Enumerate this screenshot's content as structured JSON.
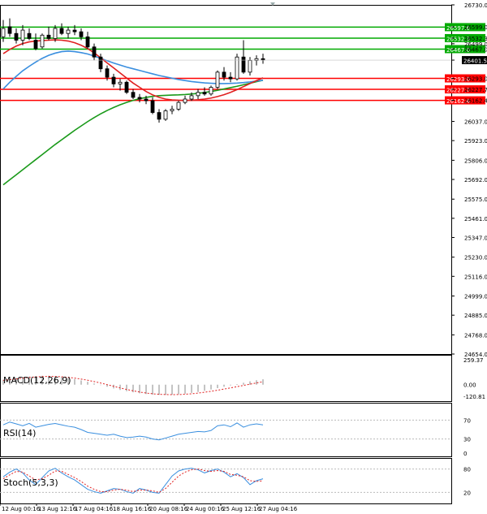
{
  "chart_data": {
    "type": "candlestick",
    "indicators": [
      "MA-fast",
      "MA-slow",
      "MA-long",
      "MACD",
      "RSI",
      "Stochastic"
    ],
    "price_axis": {
      "ticks": [
        "26730.0",
        "26599.0",
        "26532.3",
        "26499.0",
        "26467.0",
        "26401.5",
        "26293.0",
        "26227.7",
        "26162.4",
        "26037.0",
        "25923.0",
        "25806.0",
        "25692.0",
        "25575.0",
        "25461.0",
        "25347.0",
        "25230.0",
        "25116.0",
        "24999.0",
        "24885.0",
        "24768.0",
        "24654.0"
      ],
      "ylim": [
        24654.0,
        26730.0
      ]
    },
    "x_ticks": [
      "12 Aug 00:16",
      "13 Aug 12:16",
      "17 Aug 04:16",
      "18 Aug 16:16",
      "20 Aug 08:16",
      "24 Aug 00:16",
      "25 Aug 12:16",
      "27 Aug 04:16"
    ],
    "levels": [
      {
        "label": "26597.6",
        "value": 26597.6,
        "color": "#00aa00"
      },
      {
        "label": "26532.3",
        "value": 26532.3,
        "color": "#00aa00"
      },
      {
        "label": "26467.0",
        "value": 26467.0,
        "color": "#00aa00"
      },
      {
        "label": "26293.0",
        "value": 26293.0,
        "color": "#ff0000"
      },
      {
        "label": "26227.7",
        "value": 26227.7,
        "color": "#ff0000"
      },
      {
        "label": "26162.4",
        "value": 26162.4,
        "color": "#ff0000"
      }
    ],
    "current_price": {
      "label": "26401.5",
      "value": 26401.5
    },
    "panels": {
      "macd": {
        "label": "MACD(12,26,9)",
        "ticks": [
          "259.37",
          "0.00",
          "-120.81"
        ]
      },
      "rsi": {
        "label": "RSI(14)",
        "ticks": [
          "70",
          "30",
          "0"
        ]
      },
      "stoch": {
        "label": "Stoch(5,3,3)",
        "ticks": [
          "80",
          "20"
        ]
      }
    },
    "candles": [
      {
        "o": 26540,
        "h": 26640,
        "l": 26510,
        "c": 26590
      },
      {
        "o": 26600,
        "h": 26650,
        "l": 26540,
        "c": 26560
      },
      {
        "o": 26560,
        "h": 26590,
        "l": 26500,
        "c": 26520
      },
      {
        "o": 26520,
        "h": 26610,
        "l": 26490,
        "c": 26580
      },
      {
        "o": 26560,
        "h": 26590,
        "l": 26520,
        "c": 26530
      },
      {
        "o": 26520,
        "h": 26560,
        "l": 26460,
        "c": 26470
      },
      {
        "o": 26480,
        "h": 26560,
        "l": 26470,
        "c": 26550
      },
      {
        "o": 26550,
        "h": 26600,
        "l": 26520,
        "c": 26530
      },
      {
        "o": 26530,
        "h": 26610,
        "l": 26510,
        "c": 26590
      },
      {
        "o": 26590,
        "h": 26620,
        "l": 26550,
        "c": 26560
      },
      {
        "o": 26560,
        "h": 26600,
        "l": 26530,
        "c": 26580
      },
      {
        "o": 26580,
        "h": 26610,
        "l": 26550,
        "c": 26570
      },
      {
        "o": 26570,
        "h": 26590,
        "l": 26520,
        "c": 26540
      },
      {
        "o": 26540,
        "h": 26570,
        "l": 26470,
        "c": 26480
      },
      {
        "o": 26480,
        "h": 26500,
        "l": 26400,
        "c": 26420
      },
      {
        "o": 26420,
        "h": 26440,
        "l": 26330,
        "c": 26350
      },
      {
        "o": 26350,
        "h": 26370,
        "l": 26280,
        "c": 26300
      },
      {
        "o": 26300,
        "h": 26320,
        "l": 26240,
        "c": 26260
      },
      {
        "o": 26260,
        "h": 26290,
        "l": 26220,
        "c": 26270
      },
      {
        "o": 26270,
        "h": 26280,
        "l": 26200,
        "c": 26210
      },
      {
        "o": 26210,
        "h": 26230,
        "l": 26170,
        "c": 26180
      },
      {
        "o": 26180,
        "h": 26200,
        "l": 26150,
        "c": 26170
      },
      {
        "o": 26170,
        "h": 26190,
        "l": 26140,
        "c": 26160
      },
      {
        "o": 26160,
        "h": 26180,
        "l": 26080,
        "c": 26090
      },
      {
        "o": 26090,
        "h": 26110,
        "l": 26030,
        "c": 26050
      },
      {
        "o": 26050,
        "h": 26110,
        "l": 26040,
        "c": 26100
      },
      {
        "o": 26100,
        "h": 26130,
        "l": 26080,
        "c": 26110
      },
      {
        "o": 26110,
        "h": 26160,
        "l": 26100,
        "c": 26150
      },
      {
        "o": 26150,
        "h": 26190,
        "l": 26140,
        "c": 26170
      },
      {
        "o": 26170,
        "h": 26210,
        "l": 26160,
        "c": 26190
      },
      {
        "o": 26190,
        "h": 26230,
        "l": 26170,
        "c": 26210
      },
      {
        "o": 26210,
        "h": 26240,
        "l": 26190,
        "c": 26200
      },
      {
        "o": 26200,
        "h": 26250,
        "l": 26190,
        "c": 26240
      },
      {
        "o": 26240,
        "h": 26340,
        "l": 26230,
        "c": 26330
      },
      {
        "o": 26330,
        "h": 26360,
        "l": 26280,
        "c": 26300
      },
      {
        "o": 26300,
        "h": 26330,
        "l": 26270,
        "c": 26290
      },
      {
        "o": 26290,
        "h": 26440,
        "l": 26280,
        "c": 26420
      },
      {
        "o": 26420,
        "h": 26520,
        "l": 26320,
        "c": 26330
      },
      {
        "o": 26330,
        "h": 26420,
        "l": 26310,
        "c": 26400
      },
      {
        "o": 26400,
        "h": 26430,
        "l": 26370,
        "c": 26410
      },
      {
        "o": 26410,
        "h": 26440,
        "l": 26380,
        "c": 26402
      }
    ],
    "ma_fast": [
      26440,
      26465,
      26485,
      26500,
      26510,
      26515,
      26518,
      26520,
      26522,
      26520,
      26515,
      26505,
      26490,
      26470,
      26445,
      26415,
      26385,
      26355,
      26325,
      26295,
      26265,
      26240,
      26215,
      26195,
      26180,
      26170,
      26165,
      26163,
      26162,
      26163,
      26166,
      26170,
      26176,
      26185,
      26196,
      26210,
      26226,
      26244,
      26262,
      26280,
      26296
    ],
    "ma_slow": [
      26230,
      26270,
      26305,
      26338,
      26365,
      26390,
      26412,
      26430,
      26443,
      26452,
      26455,
      26452,
      26446,
      26438,
      26426,
      26412,
      26398,
      26384,
      26372,
      26360,
      26350,
      26340,
      26330,
      26320,
      26310,
      26302,
      26294,
      26286,
      26280,
      26274,
      26270,
      26266,
      26264,
      26262,
      26262,
      26263,
      26265,
      26268,
      26272,
      26277,
      26282
    ],
    "ma_long": [
      25660,
      25690,
      25720,
      25750,
      25780,
      25810,
      25840,
      25870,
      25900,
      25928,
      25956,
      25984,
      26010,
      26036,
      26060,
      26082,
      26102,
      26120,
      26136,
      26150,
      26162,
      26172,
      26180,
      26186,
      26190,
      26192,
      26194,
      26195,
      26197,
      26200,
      26204,
      26209,
      26215,
      26222,
      26230,
      26238,
      26246,
      26255,
      26264,
      26273,
      26282
    ],
    "macd_hist": [
      50,
      60,
      70,
      78,
      85,
      90,
      93,
      92,
      88,
      80,
      70,
      58,
      44,
      30,
      12,
      -5,
      -22,
      -40,
      -55,
      -68,
      -80,
      -90,
      -98,
      -103,
      -106,
      -106,
      -104,
      -100,
      -94,
      -86,
      -76,
      -64,
      -50,
      -36,
      -22,
      -8,
      6,
      20,
      34,
      46,
      56
    ],
    "macd_signal": [
      45,
      52,
      60,
      68,
      75,
      80,
      84,
      86,
      85,
      82,
      76,
      68,
      58,
      46,
      32,
      17,
      0,
      -17,
      -34,
      -50,
      -64,
      -77,
      -87,
      -95,
      -100,
      -103,
      -104,
      -103,
      -100,
      -95,
      -88,
      -79,
      -69,
      -58,
      -46,
      -34,
      -21,
      -8,
      5,
      18,
      30
    ],
    "rsi": [
      60,
      66,
      62,
      58,
      63,
      55,
      58,
      61,
      63,
      60,
      57,
      55,
      50,
      44,
      42,
      40,
      38,
      40,
      36,
      33,
      34,
      36,
      34,
      30,
      28,
      32,
      36,
      40,
      42,
      44,
      46,
      45,
      48,
      58,
      60,
      56,
      64,
      55,
      60,
      62,
      60
    ],
    "stoch_main": [
      60,
      72,
      80,
      70,
      52,
      40,
      58,
      75,
      82,
      70,
      60,
      52,
      40,
      28,
      22,
      18,
      24,
      30,
      28,
      22,
      18,
      30,
      26,
      20,
      18,
      40,
      62,
      75,
      80,
      82,
      78,
      70,
      76,
      80,
      72,
      60,
      68,
      58,
      40,
      50,
      55
    ],
    "stoch_signal": [
      55,
      65,
      74,
      72,
      62,
      52,
      55,
      64,
      75,
      74,
      66,
      58,
      48,
      36,
      28,
      22,
      22,
      26,
      28,
      26,
      22,
      26,
      26,
      24,
      20,
      30,
      46,
      62,
      72,
      78,
      80,
      76,
      74,
      76,
      74,
      66,
      64,
      60,
      50,
      48,
      50
    ]
  }
}
